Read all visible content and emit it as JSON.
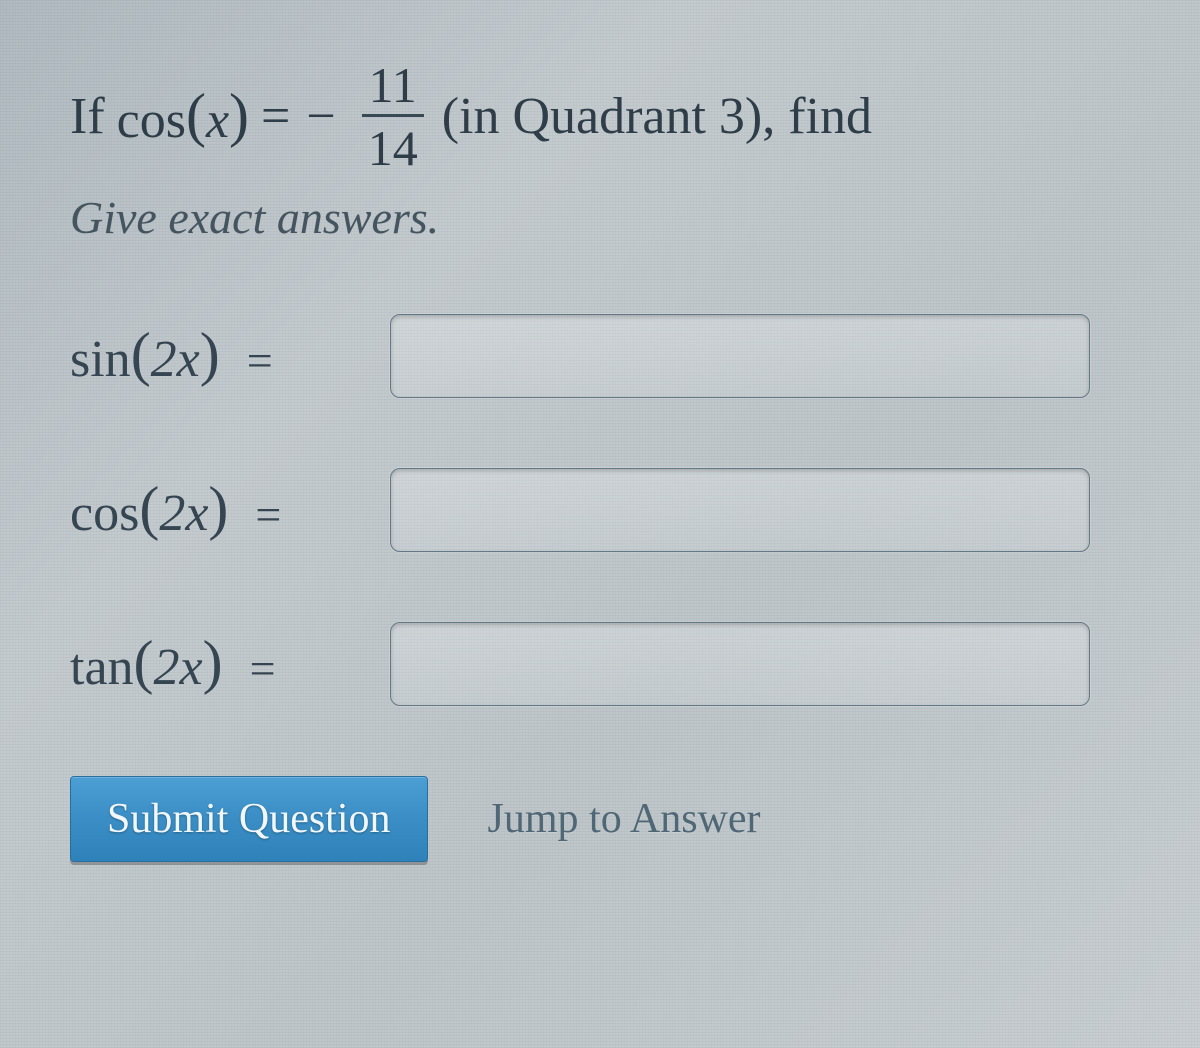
{
  "colors": {
    "background": "#b8c0c4",
    "text": "#3a4a55",
    "text_dark": "#2e3d48",
    "input_border": "#647885",
    "button_bg": "#3a8ec5",
    "button_text": "#f2f7fb",
    "link_text": "#506876"
  },
  "problem": {
    "prefix": "If ",
    "lhs_func": "cos",
    "lhs_arg": "x",
    "eq": " = ",
    "minus": "−",
    "frac_num": "11",
    "frac_den": "14",
    "suffix": " (in Quadrant 3), find"
  },
  "instruction": "Give exact answers.",
  "rows": [
    {
      "func": "sin",
      "arg": "2x",
      "value": ""
    },
    {
      "func": "cos",
      "arg": "2x",
      "value": ""
    },
    {
      "func": "tan",
      "arg": "2x",
      "value": ""
    }
  ],
  "eq_sign": "=",
  "buttons": {
    "submit": "Submit Question",
    "jump": "Jump to Answer"
  },
  "input_placeholder": ""
}
